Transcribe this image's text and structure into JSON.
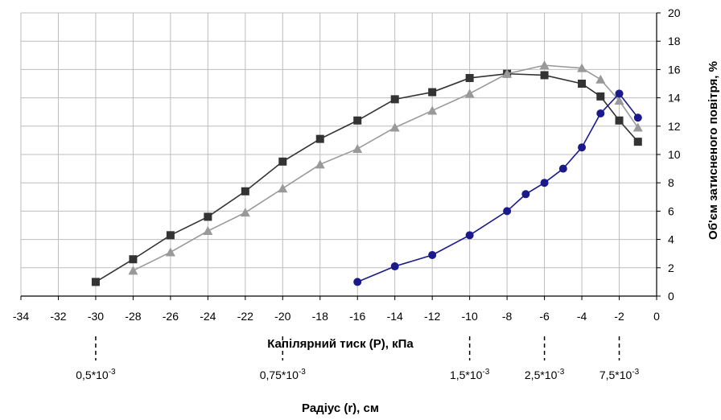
{
  "chart_data": {
    "type": "line",
    "xlabel": "Капілярний тиск (Р), кПа",
    "ylabel": "Об'єм затисненого повітря, %",
    "secondary_xlabel": "Радіус (r), см",
    "xlim": [
      -34,
      0
    ],
    "ylim": [
      0,
      20
    ],
    "x_ticks": [
      -34,
      -32,
      -30,
      -28,
      -26,
      -24,
      -22,
      -20,
      -18,
      -16,
      -14,
      -12,
      -10,
      -8,
      -6,
      -4,
      -2,
      0
    ],
    "y_ticks": [
      0,
      2,
      4,
      6,
      8,
      10,
      12,
      14,
      16,
      18,
      20
    ],
    "y_axis_position": "right",
    "grid": true,
    "radius_markers": [
      {
        "x": -30,
        "label": "0,5*10",
        "exp": "-3"
      },
      {
        "x": -20,
        "label": "0,75*10",
        "exp": "-3"
      },
      {
        "x": -10,
        "label": "1,5*10",
        "exp": "-3"
      },
      {
        "x": -6,
        "label": "2,5*10",
        "exp": "-3"
      },
      {
        "x": -2,
        "label": "7,5*10",
        "exp": "-3"
      }
    ],
    "series": [
      {
        "marker": "square",
        "color": "#333333",
        "x": [
          -30,
          -28,
          -26,
          -24,
          -22,
          -20,
          -18,
          -16,
          -14,
          -12,
          -10,
          -8,
          -6,
          -4,
          -3,
          -2,
          -1
        ],
        "y": [
          1.0,
          2.6,
          4.3,
          5.6,
          7.4,
          9.5,
          11.1,
          12.4,
          13.9,
          14.4,
          15.4,
          15.7,
          15.6,
          15.0,
          14.1,
          12.4,
          10.9
        ]
      },
      {
        "marker": "triangle",
        "color": "#999999",
        "x": [
          -28,
          -26,
          -24,
          -22,
          -20,
          -18,
          -16,
          -14,
          -12,
          -10,
          -8,
          -6,
          -4,
          -3,
          -2,
          -1
        ],
        "y": [
          1.8,
          3.1,
          4.6,
          5.9,
          7.6,
          9.3,
          10.4,
          11.9,
          13.1,
          14.3,
          15.7,
          16.3,
          16.1,
          15.3,
          13.8,
          11.9
        ]
      },
      {
        "marker": "circle",
        "color": "#1a1a8c",
        "x": [
          -16,
          -14,
          -12,
          -10,
          -8,
          -7,
          -6,
          -5,
          -4,
          -3,
          -2,
          -1
        ],
        "y": [
          1.0,
          2.1,
          2.9,
          4.3,
          6.0,
          7.2,
          8.0,
          9.0,
          10.5,
          12.9,
          14.3,
          12.6
        ]
      }
    ]
  }
}
